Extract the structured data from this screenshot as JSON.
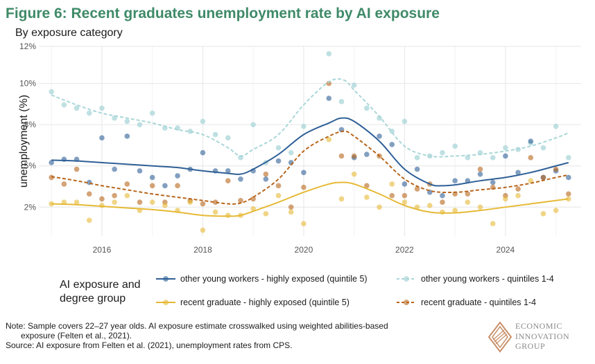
{
  "header": {
    "title": "Figure 6: Recent graduates unemployment rate by AI exposure",
    "subtitle": "By exposure category"
  },
  "legend": {
    "title": "AI exposure and degree group",
    "items": [
      {
        "label": "other young workers - highly exposed (quintile 5)",
        "color": "#2f5f96",
        "dash": false
      },
      {
        "label": "other young workers - quintiles 1-4",
        "color": "#a9d6d8",
        "dash": true
      },
      {
        "label": "recent graduate - highly exposed (quintile 5)",
        "color": "#e6b935",
        "dash": false
      },
      {
        "label": "recent graduate - quintiles 1-4",
        "color": "#b8651b",
        "dash": true
      }
    ]
  },
  "note": {
    "line1": "Note: Sample covers 22–27 year olds. AI exposure estimate crosswalked using weighted abilities-based",
    "line2": "exposure (Felten et al., 2021).",
    "line3": "Source: AI exposure from Felten et al. (2021), unemployment rates from CPS."
  },
  "logo": {
    "line1": "ECONOMIC",
    "line2": "INNOVATION",
    "line3": "GROUP",
    "color": "#c9906a"
  },
  "chart_data": {
    "type": "scatter",
    "ylabel": "unemployment (%)",
    "xlabel": "",
    "xlim": [
      2014.75,
      2025.5
    ],
    "ylim": [
      0.75,
      12.25
    ],
    "xticks": [
      2016,
      2018,
      2020,
      2022,
      2024
    ],
    "yticks": [
      {
        "v": 2.5,
        "label": "2%"
      },
      {
        "v": 5,
        "label": "5%"
      },
      {
        "v": 7.5,
        "label": "8%"
      },
      {
        "v": 10,
        "label": "10%"
      },
      {
        "v": 12.25,
        "label": "12%"
      }
    ],
    "grid": true,
    "series": [
      {
        "name": "other young workers - quintiles 1-4",
        "color": "#a9d6d8",
        "dash": true,
        "points": [
          [
            2015.0,
            9.5
          ],
          [
            2015.25,
            8.7
          ],
          [
            2015.5,
            8.5
          ],
          [
            2015.75,
            8.2
          ],
          [
            2016.0,
            8.5
          ],
          [
            2016.25,
            7.9
          ],
          [
            2016.5,
            7.7
          ],
          [
            2016.75,
            7.5
          ],
          [
            2017.0,
            8.2
          ],
          [
            2017.25,
            7.3
          ],
          [
            2017.5,
            7.3
          ],
          [
            2017.75,
            7.1
          ],
          [
            2018.0,
            7.7
          ],
          [
            2018.25,
            6.9
          ],
          [
            2018.5,
            6.7
          ],
          [
            2018.75,
            5.5
          ],
          [
            2019.0,
            7.5
          ],
          [
            2019.25,
            5.2
          ],
          [
            2019.5,
            6.1
          ],
          [
            2019.75,
            5.8
          ],
          [
            2020.0,
            7.4
          ],
          [
            2020.5,
            11.8
          ],
          [
            2020.75,
            8.9
          ],
          [
            2021.0,
            9.9
          ],
          [
            2021.25,
            8.5
          ],
          [
            2021.5,
            7.9
          ],
          [
            2021.75,
            7.1
          ],
          [
            2022.0,
            7.7
          ],
          [
            2022.25,
            5.5
          ],
          [
            2022.5,
            5.6
          ],
          [
            2022.75,
            5.8
          ],
          [
            2023.0,
            6.2
          ],
          [
            2023.25,
            5.5
          ],
          [
            2023.5,
            5.8
          ],
          [
            2023.75,
            5.5
          ],
          [
            2024.0,
            6.1
          ],
          [
            2024.25,
            6.0
          ],
          [
            2024.5,
            6.4
          ],
          [
            2024.75,
            6.1
          ],
          [
            2025.0,
            7.4
          ],
          [
            2025.25,
            5.5
          ]
        ],
        "trend": [
          [
            2015.0,
            9.3
          ],
          [
            2015.5,
            8.7
          ],
          [
            2016.0,
            8.2
          ],
          [
            2016.5,
            7.9
          ],
          [
            2017.0,
            7.6
          ],
          [
            2017.5,
            7.2
          ],
          [
            2018.0,
            6.9
          ],
          [
            2018.5,
            6.1
          ],
          [
            2018.75,
            5.6
          ],
          [
            2019.0,
            6.0
          ],
          [
            2019.5,
            6.9
          ],
          [
            2020.0,
            8.7
          ],
          [
            2020.5,
            10.1
          ],
          [
            2020.8,
            10.2
          ],
          [
            2021.0,
            9.6
          ],
          [
            2021.5,
            8.0
          ],
          [
            2022.0,
            6.2
          ],
          [
            2022.5,
            5.6
          ],
          [
            2023.0,
            5.6
          ],
          [
            2023.5,
            5.7
          ],
          [
            2024.0,
            5.9
          ],
          [
            2024.5,
            6.2
          ],
          [
            2025.0,
            6.7
          ],
          [
            2025.25,
            7.0
          ]
        ]
      },
      {
        "name": "other young workers - highly exposed (quintile 5)",
        "color": "#2f5f96",
        "dash": false,
        "points": [
          [
            2015.0,
            5.2
          ],
          [
            2015.25,
            5.4
          ],
          [
            2015.5,
            5.4
          ],
          [
            2015.75,
            4.0
          ],
          [
            2016.0,
            6.7
          ],
          [
            2016.25,
            4.8
          ],
          [
            2016.5,
            6.8
          ],
          [
            2016.75,
            4.7
          ],
          [
            2017.0,
            4.3
          ],
          [
            2017.25,
            3.8
          ],
          [
            2017.5,
            4.4
          ],
          [
            2017.75,
            4.8
          ],
          [
            2018.0,
            5.8
          ],
          [
            2018.25,
            4.7
          ],
          [
            2018.5,
            4.7
          ],
          [
            2018.75,
            4.2
          ],
          [
            2019.0,
            4.7
          ],
          [
            2019.25,
            4.2
          ],
          [
            2019.5,
            5.3
          ],
          [
            2019.75,
            5.2
          ],
          [
            2020.0,
            4.6
          ],
          [
            2020.5,
            9.1
          ],
          [
            2020.75,
            7.2
          ],
          [
            2021.0,
            5.5
          ],
          [
            2021.25,
            5.7
          ],
          [
            2021.5,
            6.8
          ],
          [
            2021.75,
            6.3
          ],
          [
            2022.0,
            3.9
          ],
          [
            2022.25,
            4.8
          ],
          [
            2022.5,
            3.4
          ],
          [
            2022.75,
            3.2
          ],
          [
            2023.0,
            4.1
          ],
          [
            2023.25,
            4.1
          ],
          [
            2023.5,
            4.5
          ],
          [
            2023.75,
            4.0
          ],
          [
            2024.0,
            5.6
          ],
          [
            2024.25,
            4.6
          ],
          [
            2024.5,
            6.5
          ],
          [
            2024.75,
            4.3
          ],
          [
            2025.0,
            4.7
          ],
          [
            2025.25,
            4.3
          ]
        ],
        "trend": [
          [
            2015.0,
            5.35
          ],
          [
            2015.5,
            5.3
          ],
          [
            2016.0,
            5.2
          ],
          [
            2016.5,
            5.1
          ],
          [
            2017.0,
            5.0
          ],
          [
            2017.5,
            4.9
          ],
          [
            2018.0,
            4.7
          ],
          [
            2018.5,
            4.55
          ],
          [
            2018.75,
            4.5
          ],
          [
            2019.0,
            4.8
          ],
          [
            2019.5,
            5.7
          ],
          [
            2020.0,
            6.9
          ],
          [
            2020.5,
            7.6
          ],
          [
            2020.75,
            7.9
          ],
          [
            2021.0,
            7.7
          ],
          [
            2021.5,
            6.5
          ],
          [
            2022.0,
            4.8
          ],
          [
            2022.5,
            3.9
          ],
          [
            2022.75,
            3.8
          ],
          [
            2023.0,
            3.85
          ],
          [
            2023.5,
            4.1
          ],
          [
            2024.0,
            4.3
          ],
          [
            2024.5,
            4.6
          ],
          [
            2025.0,
            5.0
          ],
          [
            2025.25,
            5.2
          ]
        ]
      },
      {
        "name": "recent graduate - quintiles 1-4",
        "color": "#b8651b",
        "dash": true,
        "points": [
          [
            2015.0,
            4.3
          ],
          [
            2015.25,
            3.9
          ],
          [
            2015.5,
            4.8
          ],
          [
            2015.75,
            3.3
          ],
          [
            2016.0,
            3.0
          ],
          [
            2016.25,
            3.2
          ],
          [
            2016.5,
            3.9
          ],
          [
            2016.75,
            2.8
          ],
          [
            2017.0,
            3.8
          ],
          [
            2017.25,
            2.8
          ],
          [
            2017.5,
            3.8
          ],
          [
            2017.75,
            2.9
          ],
          [
            2018.0,
            2.7
          ],
          [
            2018.25,
            2.8
          ],
          [
            2018.5,
            4.1
          ],
          [
            2018.75,
            2.9
          ],
          [
            2019.0,
            3.0
          ],
          [
            2019.25,
            4.5
          ],
          [
            2019.5,
            3.8
          ],
          [
            2019.75,
            2.5
          ],
          [
            2020.0,
            3.7
          ],
          [
            2020.5,
            10.0
          ],
          [
            2020.75,
            5.6
          ],
          [
            2021.0,
            5.6
          ],
          [
            2021.25,
            3.8
          ],
          [
            2021.5,
            5.6
          ],
          [
            2021.75,
            3.2
          ],
          [
            2022.0,
            3.2
          ],
          [
            2022.25,
            3.6
          ],
          [
            2022.5,
            3.9
          ],
          [
            2022.75,
            2.8
          ],
          [
            2023.0,
            3.3
          ],
          [
            2023.25,
            3.3
          ],
          [
            2023.5,
            4.8
          ],
          [
            2023.75,
            3.7
          ],
          [
            2024.0,
            3.2
          ],
          [
            2024.25,
            3.6
          ],
          [
            2024.5,
            5.5
          ],
          [
            2024.75,
            4.3
          ],
          [
            2025.0,
            4.8
          ],
          [
            2025.25,
            3.3
          ]
        ],
        "trend": [
          [
            2015.0,
            4.35
          ],
          [
            2015.5,
            4.1
          ],
          [
            2016.0,
            3.8
          ],
          [
            2016.5,
            3.55
          ],
          [
            2017.0,
            3.3
          ],
          [
            2017.5,
            3.1
          ],
          [
            2018.0,
            2.9
          ],
          [
            2018.5,
            2.7
          ],
          [
            2018.75,
            2.75
          ],
          [
            2019.0,
            3.1
          ],
          [
            2019.5,
            4.2
          ],
          [
            2020.0,
            5.9
          ],
          [
            2020.5,
            6.8
          ],
          [
            2020.8,
            7.1
          ],
          [
            2021.0,
            6.8
          ],
          [
            2021.5,
            5.6
          ],
          [
            2022.0,
            4.2
          ],
          [
            2022.5,
            3.5
          ],
          [
            2023.0,
            3.4
          ],
          [
            2023.5,
            3.55
          ],
          [
            2024.0,
            3.7
          ],
          [
            2024.5,
            3.95
          ],
          [
            2025.0,
            4.3
          ],
          [
            2025.25,
            4.45
          ]
        ]
      },
      {
        "name": "recent graduate - highly exposed (quintile 5)",
        "color": "#e6b935",
        "dash": false,
        "points": [
          [
            2015.0,
            2.7
          ],
          [
            2015.25,
            2.8
          ],
          [
            2015.5,
            2.8
          ],
          [
            2015.75,
            1.7
          ],
          [
            2016.0,
            2.6
          ],
          [
            2016.25,
            2.8
          ],
          [
            2016.5,
            3.2
          ],
          [
            2016.75,
            2.3
          ],
          [
            2017.0,
            2.8
          ],
          [
            2017.25,
            2.6
          ],
          [
            2017.5,
            2.3
          ],
          [
            2017.75,
            2.8
          ],
          [
            2018.0,
            1.1
          ],
          [
            2018.25,
            2.2
          ],
          [
            2018.5,
            2.0
          ],
          [
            2018.75,
            2.0
          ],
          [
            2019.0,
            2.4
          ],
          [
            2019.25,
            2.1
          ],
          [
            2019.5,
            3.2
          ],
          [
            2019.75,
            2.2
          ],
          [
            2020.0,
            1.5
          ],
          [
            2020.5,
            6.6
          ],
          [
            2020.75,
            3.0
          ],
          [
            2021.0,
            4.5
          ],
          [
            2021.25,
            3.1
          ],
          [
            2021.5,
            2.5
          ],
          [
            2021.75,
            3.9
          ],
          [
            2022.0,
            2.8
          ],
          [
            2022.25,
            2.5
          ],
          [
            2022.5,
            2.6
          ],
          [
            2022.75,
            2.2
          ],
          [
            2023.0,
            2.3
          ],
          [
            2023.25,
            2.8
          ],
          [
            2023.5,
            2.5
          ],
          [
            2023.75,
            1.5
          ],
          [
            2024.0,
            3.0
          ],
          [
            2024.25,
            3.2
          ],
          [
            2024.5,
            4.1
          ],
          [
            2024.75,
            2.1
          ],
          [
            2025.0,
            2.3
          ],
          [
            2025.25,
            3.0
          ]
        ],
        "trend": [
          [
            2015.0,
            2.7
          ],
          [
            2015.5,
            2.65
          ],
          [
            2016.0,
            2.55
          ],
          [
            2016.5,
            2.45
          ],
          [
            2017.0,
            2.35
          ],
          [
            2017.5,
            2.2
          ],
          [
            2018.0,
            2.0
          ],
          [
            2018.5,
            1.95
          ],
          [
            2018.75,
            2.0
          ],
          [
            2019.0,
            2.25
          ],
          [
            2019.5,
            2.8
          ],
          [
            2020.0,
            3.4
          ],
          [
            2020.5,
            3.9
          ],
          [
            2020.75,
            4.0
          ],
          [
            2021.0,
            3.9
          ],
          [
            2021.5,
            3.3
          ],
          [
            2022.0,
            2.6
          ],
          [
            2022.5,
            2.2
          ],
          [
            2023.0,
            2.15
          ],
          [
            2023.5,
            2.3
          ],
          [
            2024.0,
            2.5
          ],
          [
            2024.5,
            2.7
          ],
          [
            2025.0,
            2.9
          ],
          [
            2025.25,
            3.0
          ]
        ]
      }
    ]
  }
}
